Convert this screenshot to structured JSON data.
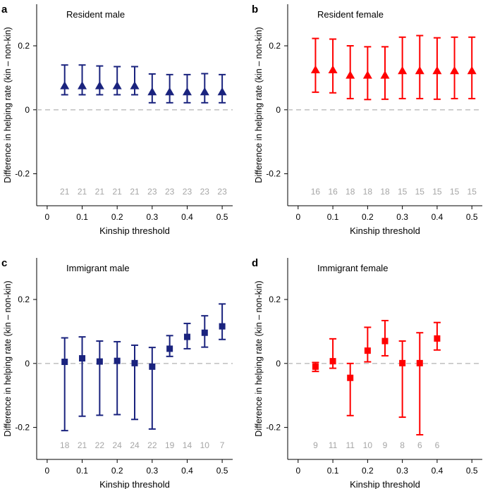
{
  "chart_data": [
    {
      "type": "errorbar",
      "panel_letter": "a",
      "title": "Resident male",
      "xlabel": "Kinship threshold",
      "ylabel": "Difference in helping rate (kin – non-kin)",
      "xlim": [
        -0.03,
        0.53
      ],
      "ylim": [
        -0.3,
        0.33
      ],
      "x_ticks": [
        "0",
        "0.1",
        "0.2",
        "0.3",
        "0.4",
        "0.5"
      ],
      "y_ticks": [
        "0.2",
        "0",
        "-0.2"
      ],
      "marker": "triangle",
      "color": "#1a237e",
      "x": [
        0.05,
        0.1,
        0.15,
        0.2,
        0.25,
        0.3,
        0.35,
        0.4,
        0.45,
        0.5
      ],
      "y": [
        0.075,
        0.075,
        0.075,
        0.075,
        0.075,
        0.056,
        0.056,
        0.056,
        0.056,
        0.056
      ],
      "lower": [
        0.047,
        0.047,
        0.047,
        0.047,
        0.047,
        0.022,
        0.022,
        0.022,
        0.022,
        0.022
      ],
      "upper": [
        0.14,
        0.14,
        0.137,
        0.135,
        0.135,
        0.112,
        0.11,
        0.11,
        0.113,
        0.11
      ],
      "n": [
        "21",
        "21",
        "21",
        "21",
        "21",
        "23",
        "23",
        "23",
        "23",
        "23"
      ]
    },
    {
      "type": "errorbar",
      "panel_letter": "b",
      "title": "Resident female",
      "xlabel": "Kinship threshold",
      "ylabel": "Difference in helping rate (kin – non-kin)",
      "xlim": [
        -0.03,
        0.53
      ],
      "ylim": [
        -0.3,
        0.33
      ],
      "x_ticks": [
        "0",
        "0.1",
        "0.2",
        "0.3",
        "0.4",
        "0.5"
      ],
      "y_ticks": [
        "0.2",
        "0",
        "-0.2"
      ],
      "marker": "triangle",
      "color": "#ff0000",
      "x": [
        0.05,
        0.1,
        0.15,
        0.2,
        0.25,
        0.3,
        0.35,
        0.4,
        0.45,
        0.5
      ],
      "y": [
        0.125,
        0.125,
        0.108,
        0.108,
        0.108,
        0.122,
        0.122,
        0.122,
        0.122,
        0.122
      ],
      "lower": [
        0.055,
        0.053,
        0.035,
        0.032,
        0.033,
        0.035,
        0.035,
        0.033,
        0.035,
        0.035
      ],
      "upper": [
        0.223,
        0.221,
        0.2,
        0.197,
        0.197,
        0.227,
        0.232,
        0.225,
        0.227,
        0.227
      ],
      "n": [
        "16",
        "16",
        "18",
        "18",
        "18",
        "15",
        "15",
        "15",
        "15",
        "15"
      ]
    },
    {
      "type": "errorbar",
      "panel_letter": "c",
      "title": "Immigrant male",
      "xlabel": "Kinship threshold",
      "ylabel": "Difference in helping rate (kin – non-kin)",
      "xlim": [
        -0.03,
        0.53
      ],
      "ylim": [
        -0.3,
        0.33
      ],
      "x_ticks": [
        "0",
        "0.1",
        "0.2",
        "0.3",
        "0.4",
        "0.5"
      ],
      "y_ticks": [
        "0.2",
        "0",
        "-0.2"
      ],
      "marker": "square",
      "color": "#1a237e",
      "x": [
        0.05,
        0.1,
        0.15,
        0.2,
        0.25,
        0.3,
        0.35,
        0.4,
        0.45,
        0.5
      ],
      "y": [
        0.005,
        0.016,
        0.006,
        0.008,
        0.001,
        -0.01,
        0.046,
        0.083,
        0.096,
        0.116
      ],
      "lower": [
        -0.21,
        -0.165,
        -0.162,
        -0.16,
        -0.175,
        -0.205,
        0.022,
        0.046,
        0.051,
        0.075
      ],
      "upper": [
        0.08,
        0.083,
        0.07,
        0.068,
        0.057,
        0.05,
        0.087,
        0.125,
        0.149,
        0.186
      ],
      "n": [
        "18",
        "21",
        "22",
        "24",
        "24",
        "22",
        "19",
        "14",
        "10",
        "7"
      ]
    },
    {
      "type": "errorbar",
      "panel_letter": "d",
      "title": "Immigrant female",
      "xlabel": "Kinship threshold",
      "ylabel": "Difference in helping rate (kin – non-kin)",
      "xlim": [
        -0.03,
        0.53
      ],
      "ylim": [
        -0.3,
        0.33
      ],
      "x_ticks": [
        "0",
        "0.1",
        "0.2",
        "0.3",
        "0.4",
        "0.5"
      ],
      "y_ticks": [
        "0.2",
        "0",
        "-0.2"
      ],
      "marker": "square",
      "color": "#ff0000",
      "x": [
        0.05,
        0.1,
        0.15,
        0.2,
        0.25,
        0.3,
        0.35,
        0.4
      ],
      "y": [
        -0.01,
        0.007,
        -0.045,
        0.04,
        0.07,
        0.001,
        0.001,
        0.078
      ],
      "lower": [
        -0.025,
        -0.015,
        -0.163,
        0.005,
        0.024,
        -0.168,
        -0.223,
        0.042
      ],
      "upper": [
        0.003,
        0.077,
        0.0,
        0.113,
        0.134,
        0.07,
        0.096,
        0.128
      ],
      "n": [
        "9",
        "11",
        "11",
        "10",
        "9",
        "8",
        "6",
        "6"
      ]
    }
  ]
}
